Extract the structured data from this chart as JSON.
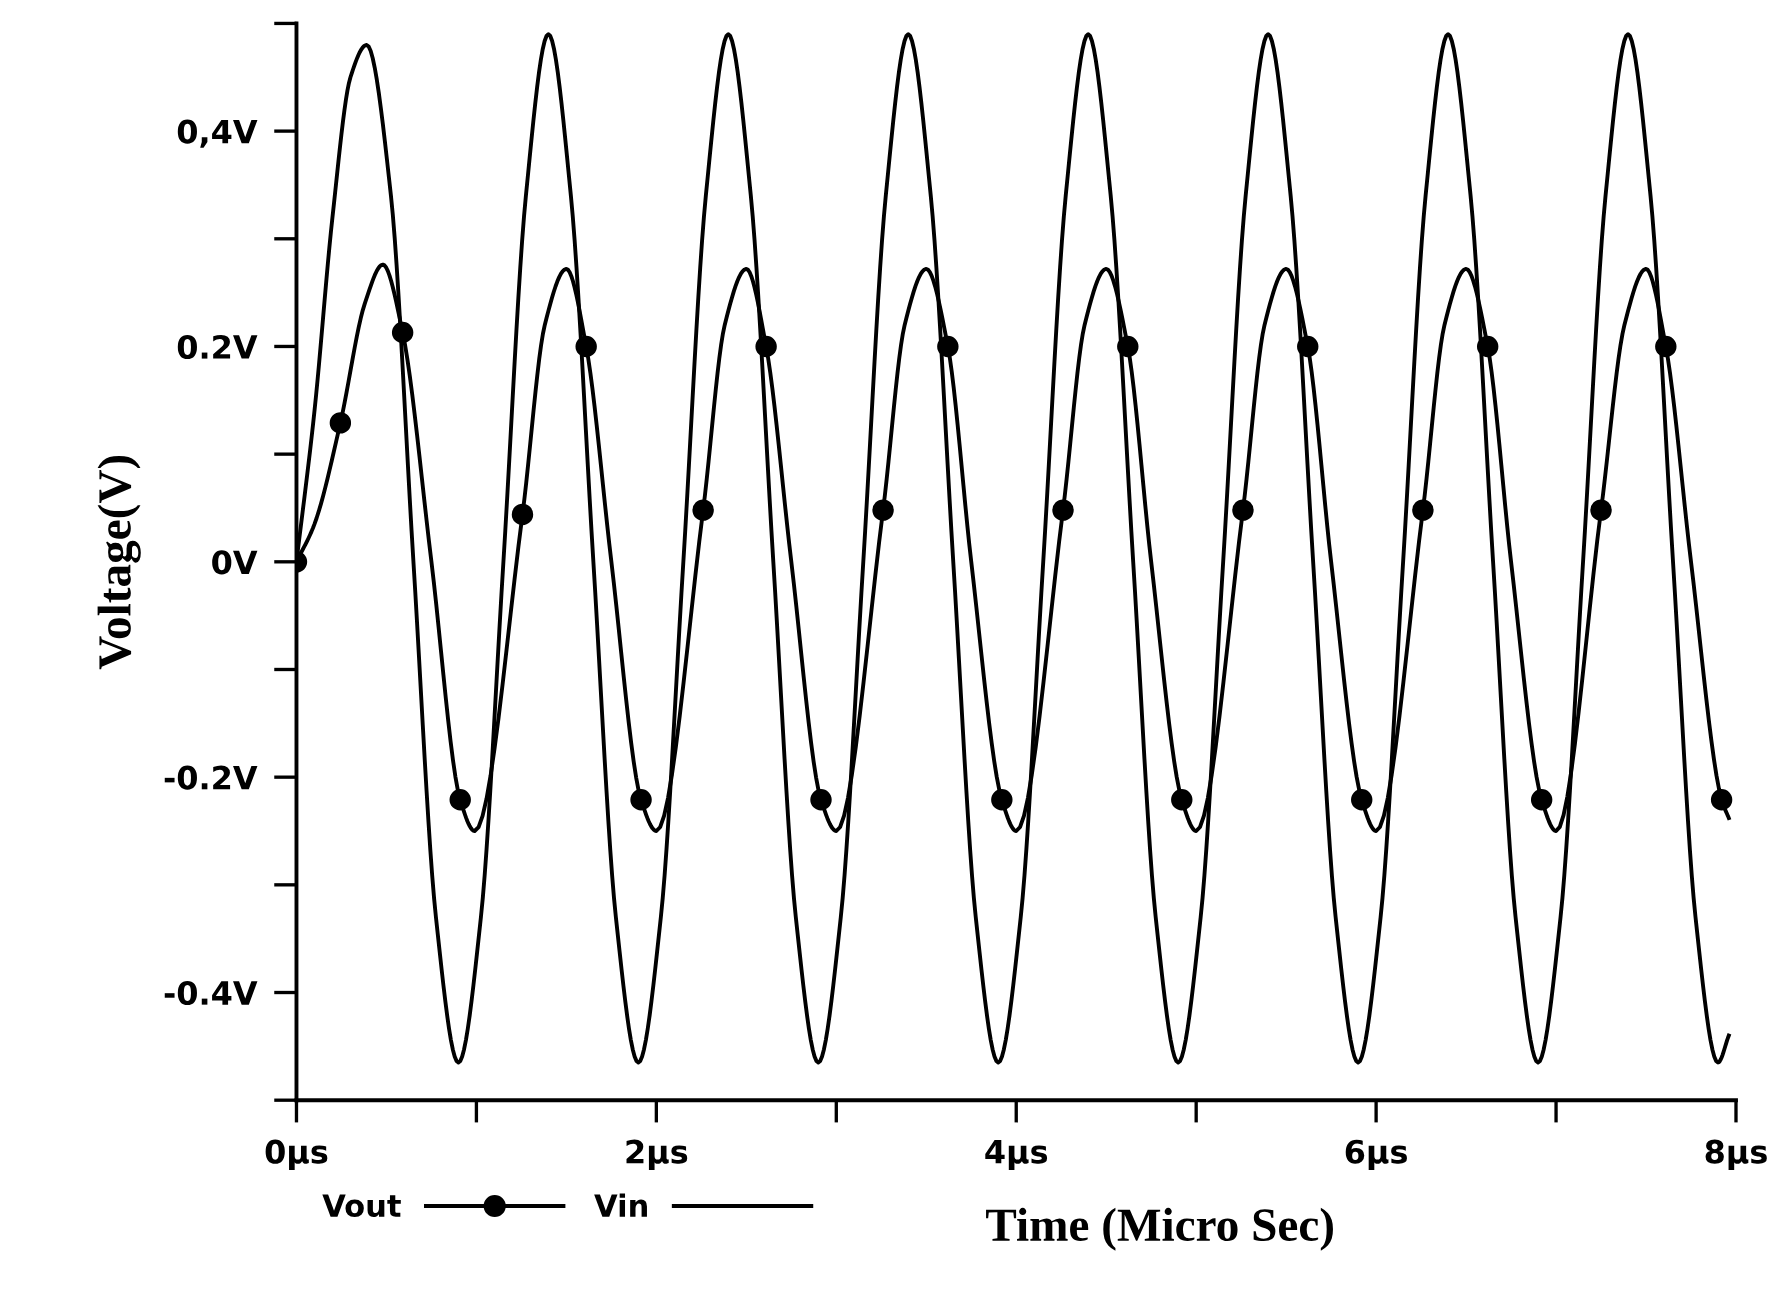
{
  "chart_data": {
    "type": "line",
    "xlabel": "Time (Micro Sec)",
    "ylabel": "Voltage(V)",
    "xlim": [
      0,
      8
    ],
    "ylim": [
      -0.5,
      0.5
    ],
    "xticks": [
      {
        "value": 0,
        "label": "0μs"
      },
      {
        "value": 1,
        "label": null
      },
      {
        "value": 2,
        "label": "2μs"
      },
      {
        "value": 3,
        "label": null
      },
      {
        "value": 4,
        "label": "4μs"
      },
      {
        "value": 5,
        "label": null
      },
      {
        "value": 6,
        "label": "6μs"
      },
      {
        "value": 7,
        "label": null
      },
      {
        "value": 8,
        "label": "8μs"
      }
    ],
    "yticks": [
      {
        "value": -0.5,
        "label": null
      },
      {
        "value": -0.4,
        "label": "-0.4V"
      },
      {
        "value": -0.3,
        "label": null
      },
      {
        "value": -0.2,
        "label": "-0.2V"
      },
      {
        "value": -0.1,
        "label": null
      },
      {
        "value": 0,
        "label": "0V"
      },
      {
        "value": 0.1,
        "label": null
      },
      {
        "value": 0.2,
        "label": "0.2V"
      },
      {
        "value": 0.3,
        "label": null
      },
      {
        "value": 0.4,
        "label": "0,4V"
      },
      {
        "value": 0.5,
        "label": null
      }
    ],
    "grid": false,
    "legend": "bottom",
    "series": [
      {
        "name": "Vout",
        "color": "#000000",
        "marker": "none",
        "x": [
          0,
          0.1,
          0.244,
          0.38,
          0.48,
          0.59,
          0.75,
          0.91,
          0.99,
          1.256,
          1.38,
          1.5,
          1.61,
          1.75,
          1.915,
          2.0,
          2.26,
          2.38,
          2.5,
          2.61,
          2.75,
          2.915,
          3.0,
          3.26,
          3.38,
          3.5,
          3.62,
          3.75,
          3.92,
          4.0,
          4.26,
          4.38,
          4.5,
          4.62,
          4.75,
          4.92,
          5.0,
          5.26,
          5.38,
          5.5,
          5.62,
          5.75,
          5.92,
          6.0,
          6.26,
          6.38,
          6.5,
          6.62,
          6.75,
          6.92,
          7.0,
          7.25,
          7.38,
          7.5,
          7.61,
          7.75,
          7.92,
          7.96
        ],
        "values": [
          0,
          0.035,
          0.129,
          0.24,
          0.276,
          0.213,
          0,
          -0.221,
          -0.25,
          0.044,
          0.22,
          0.272,
          0.2,
          0,
          -0.221,
          -0.25,
          0.048,
          0.22,
          0.272,
          0.2,
          0,
          -0.221,
          -0.25,
          0.048,
          0.22,
          0.272,
          0.2,
          0,
          -0.221,
          -0.25,
          0.048,
          0.22,
          0.272,
          0.2,
          0,
          -0.221,
          -0.25,
          0.048,
          0.22,
          0.272,
          0.2,
          0,
          -0.221,
          -0.25,
          0.048,
          0.22,
          0.272,
          0.2,
          0,
          -0.221,
          -0.25,
          0.048,
          0.22,
          0.272,
          0.2,
          0,
          -0.221,
          -0.238
        ]
      },
      {
        "color": "#000000",
        "type": "scatter",
        "marker": "circle",
        "x": [
          0,
          0.244,
          0.59,
          0.91,
          1.256,
          1.61,
          1.915,
          2.26,
          2.61,
          2.915,
          3.26,
          3.62,
          3.92,
          4.26,
          4.62,
          4.92,
          5.26,
          5.62,
          5.92,
          6.26,
          6.62,
          6.92,
          7.25,
          7.61,
          7.92
        ],
        "values": [
          0,
          0.129,
          0.213,
          -0.221,
          0.044,
          0.2,
          -0.221,
          0.048,
          0.2,
          -0.221,
          0.048,
          0.2,
          -0.221,
          0.048,
          0.2,
          -0.221,
          0.048,
          0.2,
          -0.221,
          0.048,
          0.2,
          -0.221,
          0.048,
          0.2,
          -0.221
        ]
      },
      {
        "name": "Vin",
        "color": "#000000",
        "marker": "none",
        "x": [
          0,
          0.1,
          0.2,
          0.3,
          0.39,
          0.525,
          0.65,
          0.775,
          0.9,
          1.025,
          1.15,
          1.275,
          1.4,
          1.525,
          1.65,
          1.775,
          1.9,
          2.025,
          2.15,
          2.275,
          2.4,
          2.525,
          2.65,
          2.775,
          2.9,
          3.025,
          3.15,
          3.275,
          3.4,
          3.525,
          3.65,
          3.775,
          3.9,
          4.025,
          4.15,
          4.275,
          4.4,
          4.525,
          4.65,
          4.775,
          4.9,
          5.025,
          5.15,
          5.275,
          5.4,
          5.525,
          5.65,
          5.775,
          5.9,
          6.025,
          6.15,
          6.275,
          6.4,
          6.525,
          6.65,
          6.775,
          6.9,
          7.025,
          7.15,
          7.275,
          7.4,
          7.525,
          7.65,
          7.775,
          7.9,
          7.96
        ],
        "values": [
          0,
          0.14,
          0.32,
          0.45,
          0.48,
          0.34,
          0,
          -0.33,
          -0.465,
          -0.33,
          0,
          0.34,
          0.49,
          0.34,
          0,
          -0.33,
          -0.465,
          -0.33,
          0,
          0.34,
          0.49,
          0.34,
          0,
          -0.33,
          -0.465,
          -0.33,
          0,
          0.34,
          0.49,
          0.34,
          0,
          -0.33,
          -0.465,
          -0.33,
          0,
          0.34,
          0.49,
          0.34,
          0,
          -0.33,
          -0.465,
          -0.33,
          0,
          0.34,
          0.49,
          0.34,
          0,
          -0.33,
          -0.465,
          -0.33,
          0,
          0.34,
          0.49,
          0.34,
          0,
          -0.33,
          -0.465,
          -0.33,
          0,
          0.34,
          0.49,
          0.34,
          0,
          -0.33,
          -0.465,
          -0.44
        ]
      }
    ]
  }
}
